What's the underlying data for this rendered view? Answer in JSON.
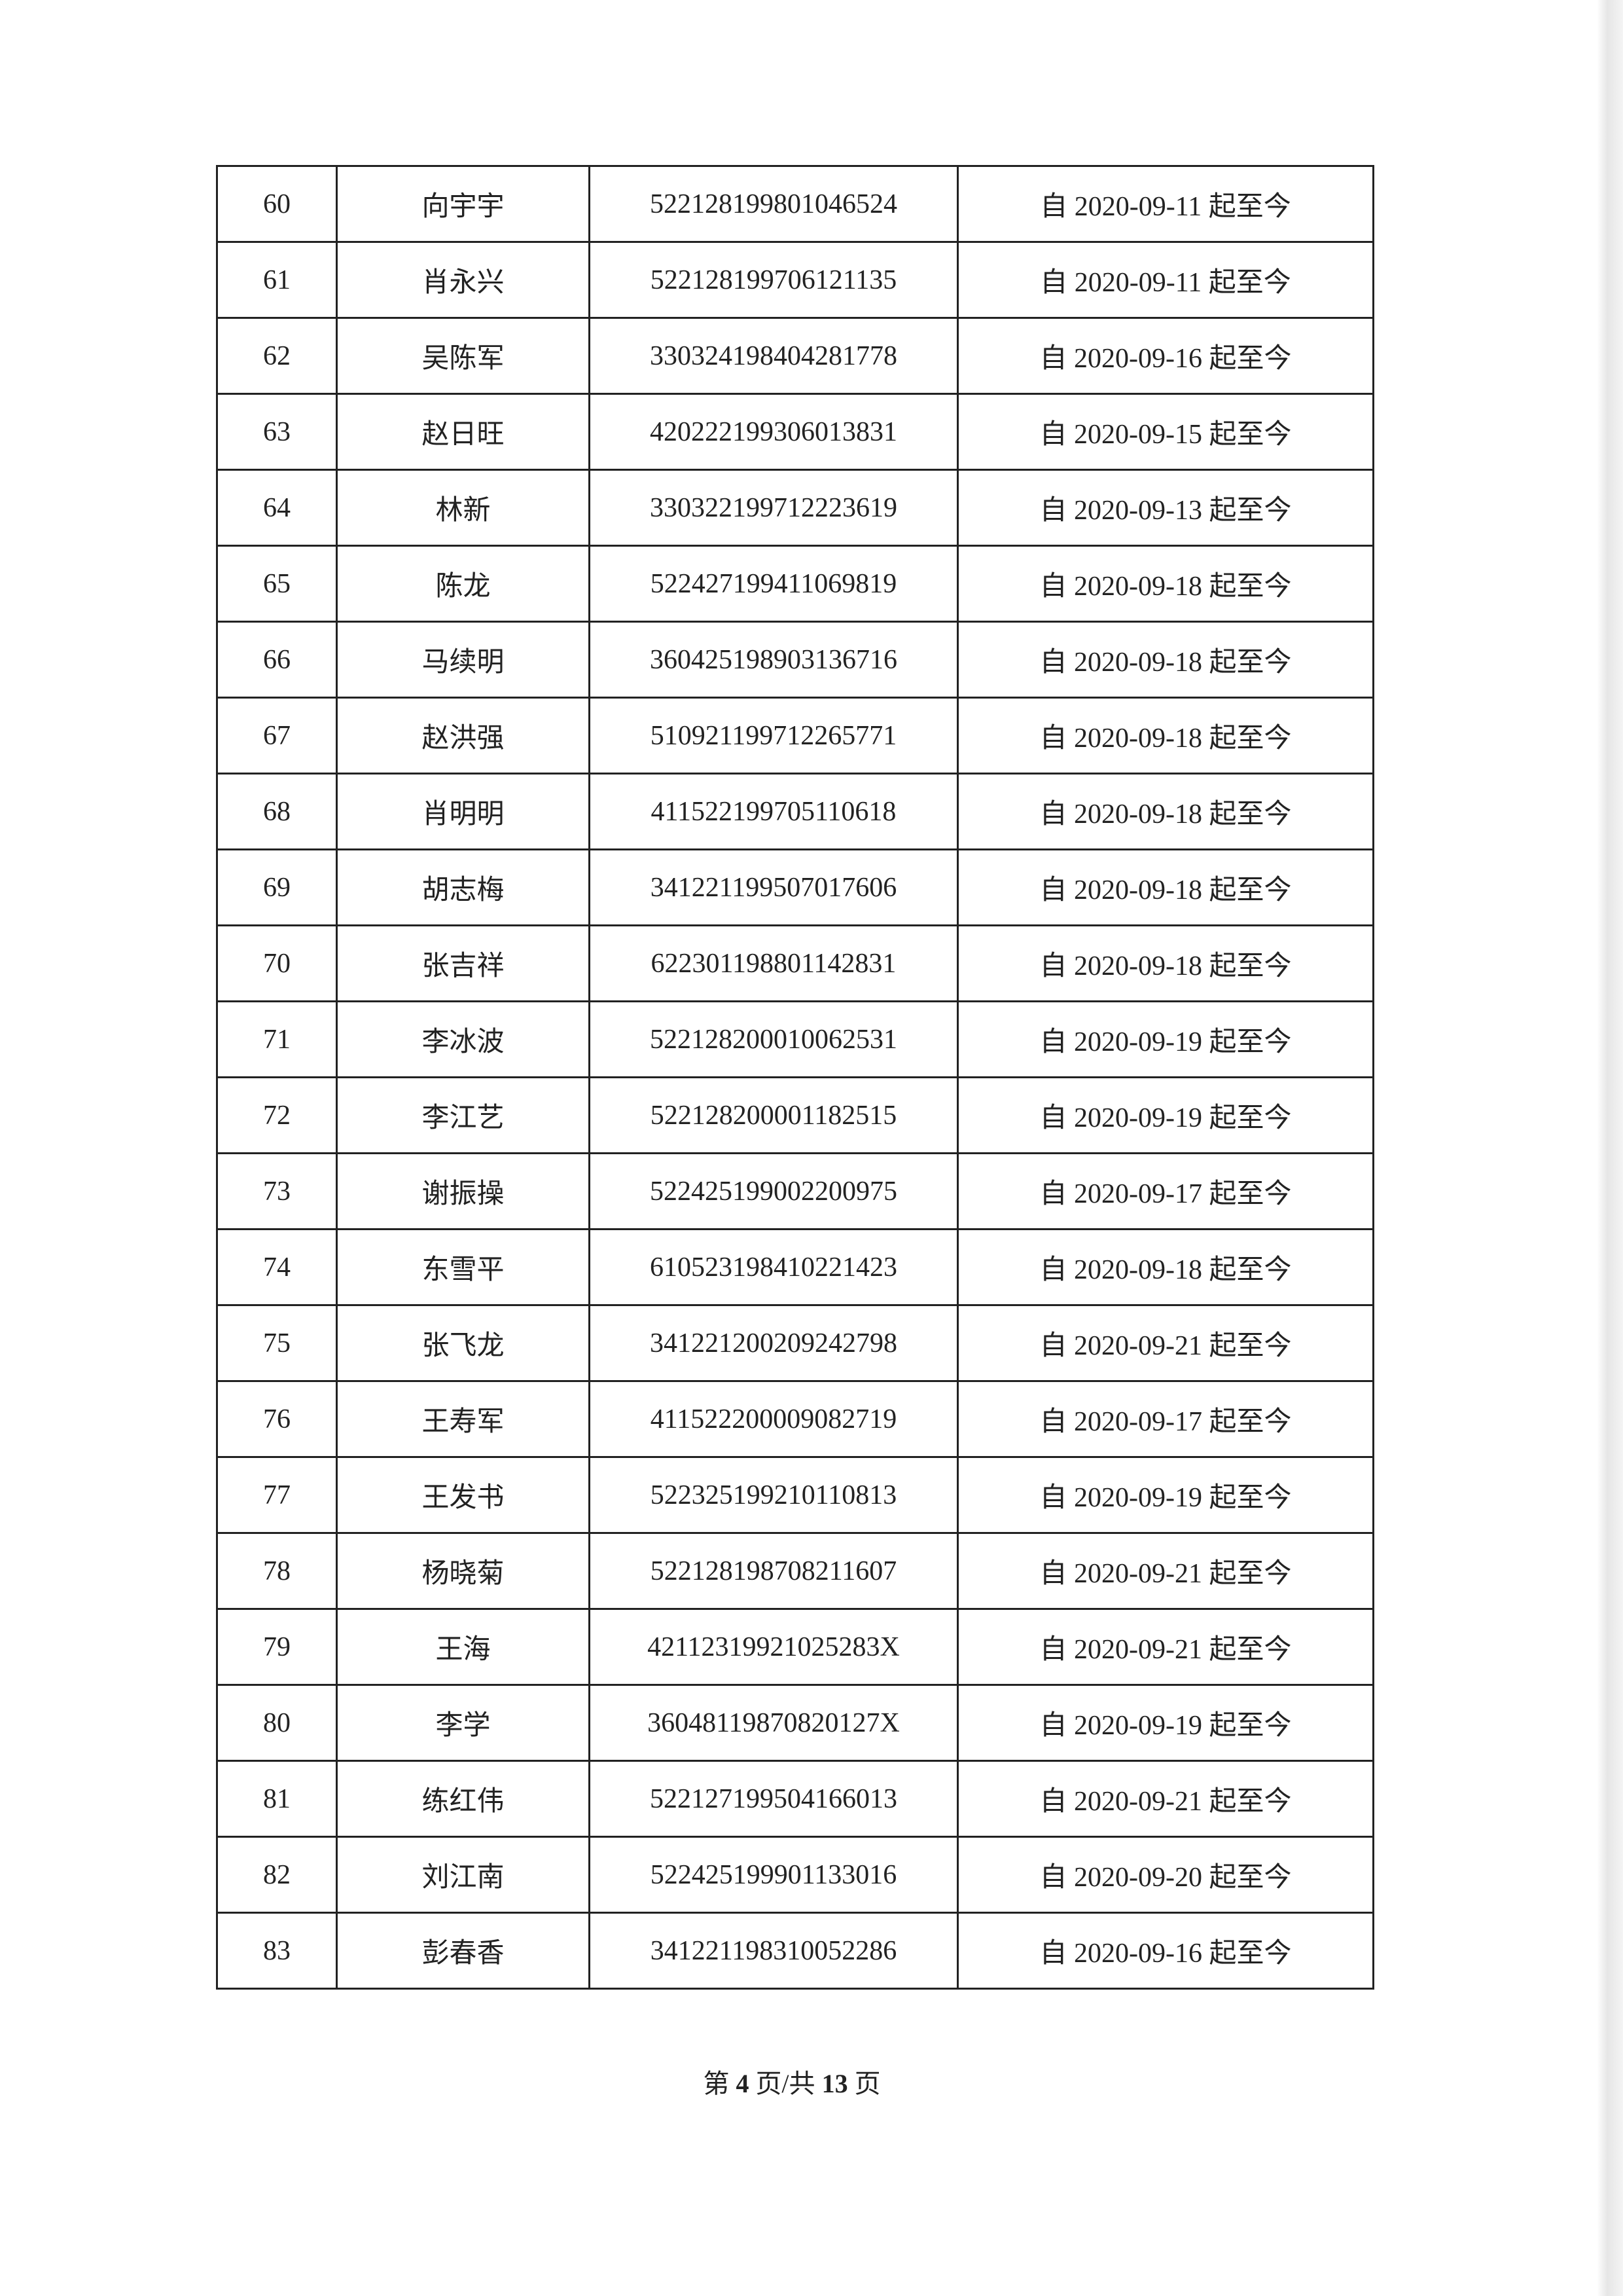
{
  "rows": [
    {
      "no": "60",
      "name": "向宇宇",
      "id": "522128199801046524",
      "period": "自 2020-09-11 起至今"
    },
    {
      "no": "61",
      "name": "肖永兴",
      "id": "522128199706121135",
      "period": "自 2020-09-11 起至今"
    },
    {
      "no": "62",
      "name": "吴陈军",
      "id": "330324198404281778",
      "period": "自 2020-09-16 起至今"
    },
    {
      "no": "63",
      "name": "赵日旺",
      "id": "420222199306013831",
      "period": "自 2020-09-15 起至今"
    },
    {
      "no": "64",
      "name": "林新",
      "id": "330322199712223619",
      "period": "自 2020-09-13 起至今"
    },
    {
      "no": "65",
      "name": "陈龙",
      "id": "522427199411069819",
      "period": "自 2020-09-18 起至今"
    },
    {
      "no": "66",
      "name": "马续明",
      "id": "360425198903136716",
      "period": "自 2020-09-18 起至今"
    },
    {
      "no": "67",
      "name": "赵洪强",
      "id": "510921199712265771",
      "period": "自 2020-09-18 起至今"
    },
    {
      "no": "68",
      "name": "肖明明",
      "id": "411522199705110618",
      "period": "自 2020-09-18 起至今"
    },
    {
      "no": "69",
      "name": "胡志梅",
      "id": "341221199507017606",
      "period": "自 2020-09-18 起至今"
    },
    {
      "no": "70",
      "name": "张吉祥",
      "id": "622301198801142831",
      "period": "自 2020-09-18 起至今"
    },
    {
      "no": "71",
      "name": "李冰波",
      "id": "522128200010062531",
      "period": "自 2020-09-19 起至今"
    },
    {
      "no": "72",
      "name": "李江艺",
      "id": "522128200001182515",
      "period": "自 2020-09-19 起至今"
    },
    {
      "no": "73",
      "name": "谢振操",
      "id": "522425199002200975",
      "period": "自 2020-09-17 起至今"
    },
    {
      "no": "74",
      "name": "东雪平",
      "id": "610523198410221423",
      "period": "自 2020-09-18 起至今"
    },
    {
      "no": "75",
      "name": "张飞龙",
      "id": "341221200209242798",
      "period": "自 2020-09-21 起至今"
    },
    {
      "no": "76",
      "name": "王寿军",
      "id": "411522200009082719",
      "period": "自 2020-09-17 起至今"
    },
    {
      "no": "77",
      "name": "王发书",
      "id": "522325199210110813",
      "period": "自 2020-09-19 起至今"
    },
    {
      "no": "78",
      "name": "杨晓菊",
      "id": "522128198708211607",
      "period": "自 2020-09-21 起至今"
    },
    {
      "no": "79",
      "name": "王海",
      "id": "42112319921025283X",
      "period": "自 2020-09-21 起至今"
    },
    {
      "no": "80",
      "name": "李学",
      "id": "36048119870820127X",
      "period": "自 2020-09-19 起至今"
    },
    {
      "no": "81",
      "name": "练红伟",
      "id": "522127199504166013",
      "period": "自 2020-09-21 起至今"
    },
    {
      "no": "82",
      "name": "刘江南",
      "id": "522425199901133016",
      "period": "自 2020-09-20 起至今"
    },
    {
      "no": "83",
      "name": "彭春香",
      "id": "341221198310052286",
      "period": "自 2020-09-16 起至今"
    }
  ],
  "footer": {
    "prefix": "第",
    "page": "4",
    "middle": "页/共",
    "total": "13",
    "suffix": "页"
  }
}
